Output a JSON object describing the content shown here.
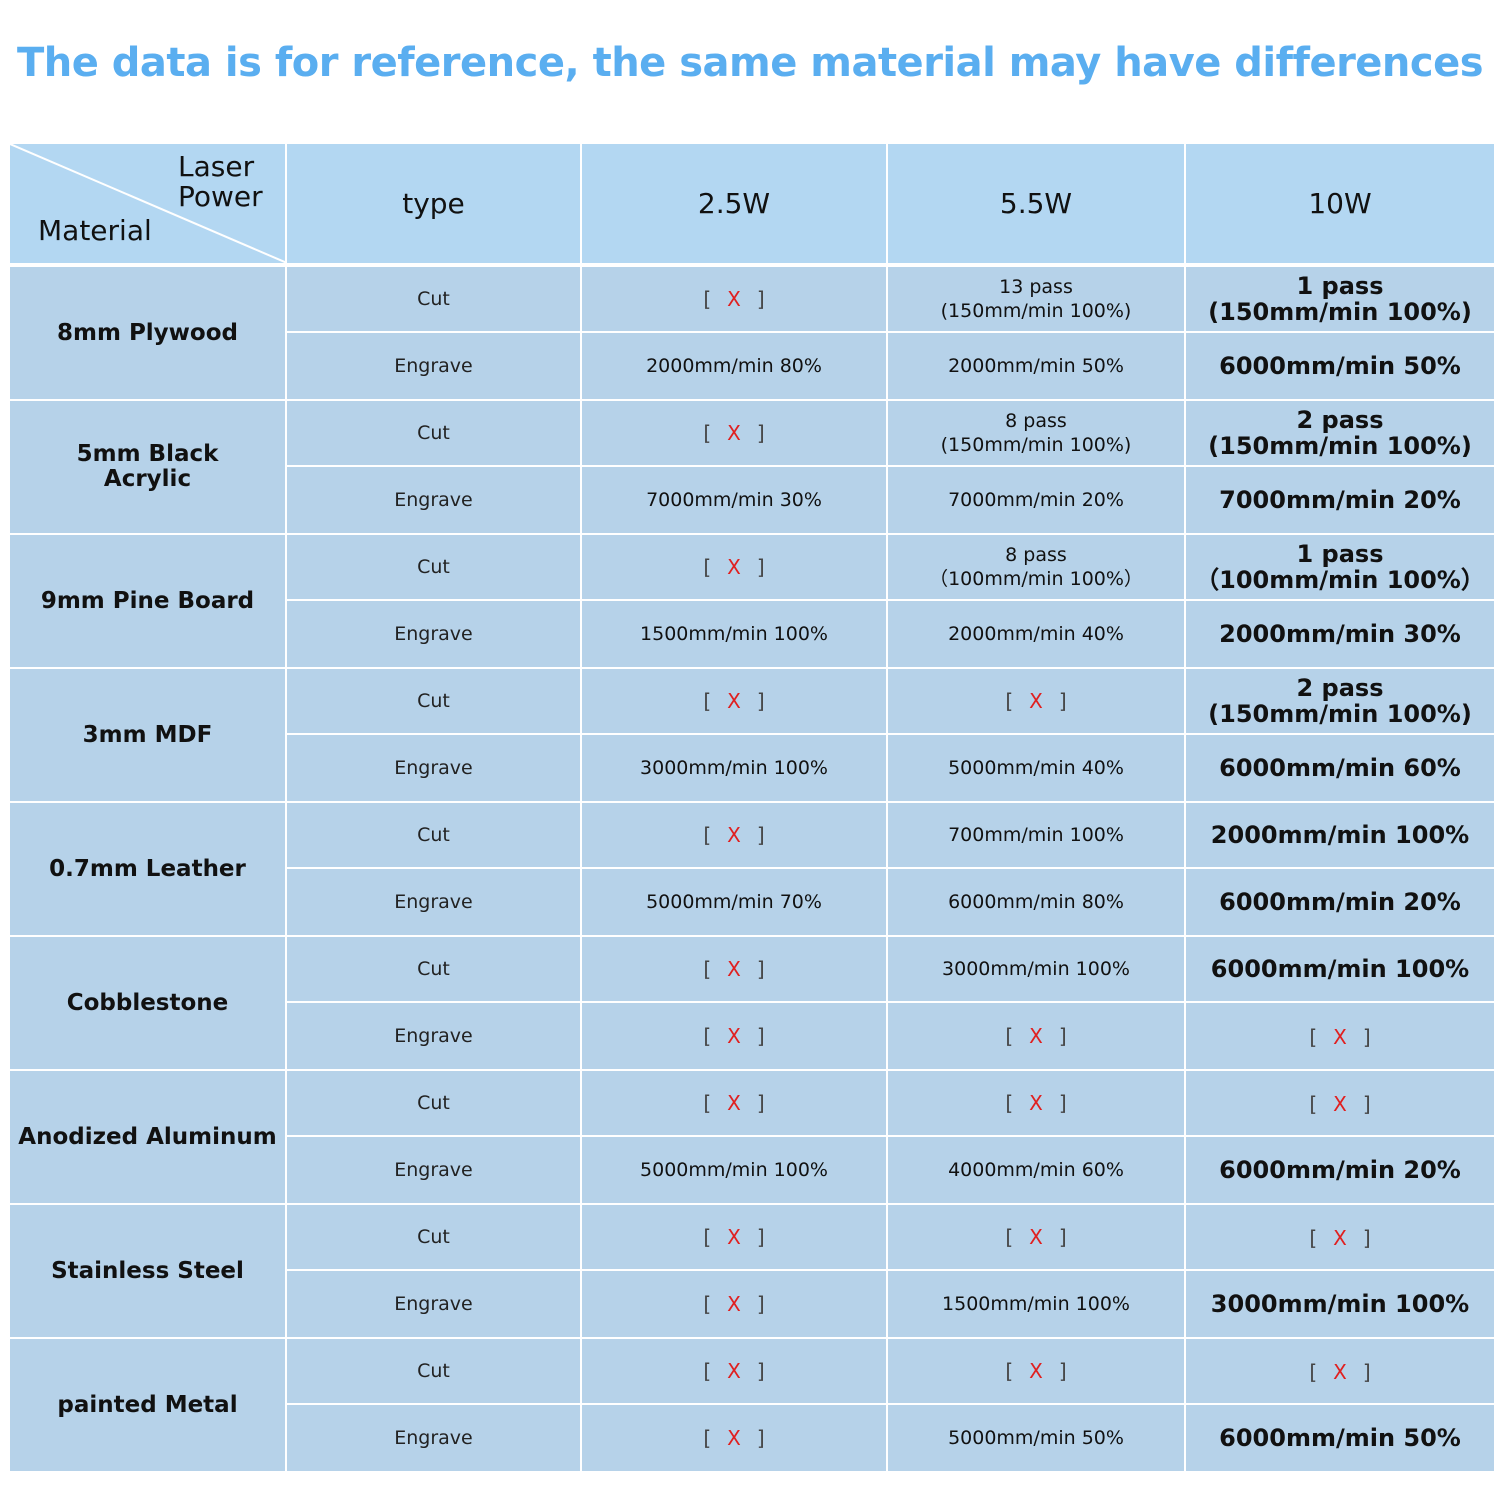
{
  "headline": "The data is for reference, the same material may have differences",
  "header": {
    "laser_power": "Laser\nPower",
    "material": "Material",
    "type": "type",
    "powers": [
      "2.5W",
      "5.5W",
      "10W"
    ]
  },
  "not_available": {
    "open": "[",
    "mark": "X",
    "close": "]"
  },
  "rows": [
    {
      "material": "8mm Plywood",
      "cut": {
        "type": "Cut",
        "w25": null,
        "w55": "13 pass\n(150mm/min 100%)",
        "w10": "1 pass\n(150mm/min 100%)"
      },
      "engrave": {
        "type": "Engrave",
        "w25": "2000mm/min 80%",
        "w55": "2000mm/min 50%",
        "w10": "6000mm/min 50%"
      }
    },
    {
      "material": "5mm Black\nAcrylic",
      "cut": {
        "type": "Cut",
        "w25": null,
        "w55": "8 pass\n(150mm/min 100%)",
        "w10": "2 pass\n(150mm/min 100%)"
      },
      "engrave": {
        "type": "Engrave",
        "w25": "7000mm/min 30%",
        "w55": "7000mm/min 20%",
        "w10": "7000mm/min 20%"
      }
    },
    {
      "material": "9mm Pine Board",
      "cut": {
        "type": "Cut",
        "w25": null,
        "w55": "8 pass\n（100mm/min 100%）",
        "w10": "1 pass\n（100mm/min 100%）"
      },
      "engrave": {
        "type": "Engrave",
        "w25": "1500mm/min 100%",
        "w55": "2000mm/min 40%",
        "w10": "2000mm/min 30%"
      }
    },
    {
      "material": "3mm MDF",
      "cut": {
        "type": "Cut",
        "w25": null,
        "w55": null,
        "w10": "2 pass\n(150mm/min 100%)"
      },
      "engrave": {
        "type": "Engrave",
        "w25": "3000mm/min 100%",
        "w55": "5000mm/min 40%",
        "w10": "6000mm/min 60%"
      }
    },
    {
      "material": "0.7mm Leather",
      "cut": {
        "type": "Cut",
        "w25": null,
        "w55": "700mm/min 100%",
        "w10": "2000mm/min 100%"
      },
      "engrave": {
        "type": "Engrave",
        "w25": "5000mm/min 70%",
        "w55": "6000mm/min 80%",
        "w10": "6000mm/min 20%"
      }
    },
    {
      "material": "Cobblestone",
      "cut": {
        "type": "Cut",
        "w25": null,
        "w55": "3000mm/min 100%",
        "w10": "6000mm/min 100%"
      },
      "engrave": {
        "type": "Engrave",
        "w25": null,
        "w55": null,
        "w10": null
      }
    },
    {
      "material": "Anodized Aluminum",
      "cut": {
        "type": "Cut",
        "w25": null,
        "w55": null,
        "w10": null
      },
      "engrave": {
        "type": "Engrave",
        "w25": "5000mm/min 100%",
        "w55": "4000mm/min 60%",
        "w10": "6000mm/min 20%"
      }
    },
    {
      "material": "Stainless Steel",
      "cut": {
        "type": "Cut",
        "w25": null,
        "w55": null,
        "w10": null
      },
      "engrave": {
        "type": "Engrave",
        "w25": null,
        "w55": "1500mm/min 100%",
        "w10": "3000mm/min 100%"
      }
    },
    {
      "material": "painted Metal",
      "cut": {
        "type": "Cut",
        "w25": null,
        "w55": null,
        "w10": null
      },
      "engrave": {
        "type": "Engrave",
        "w25": null,
        "w55": "5000mm/min 50%",
        "w10": "6000mm/min 50%"
      }
    }
  ]
}
